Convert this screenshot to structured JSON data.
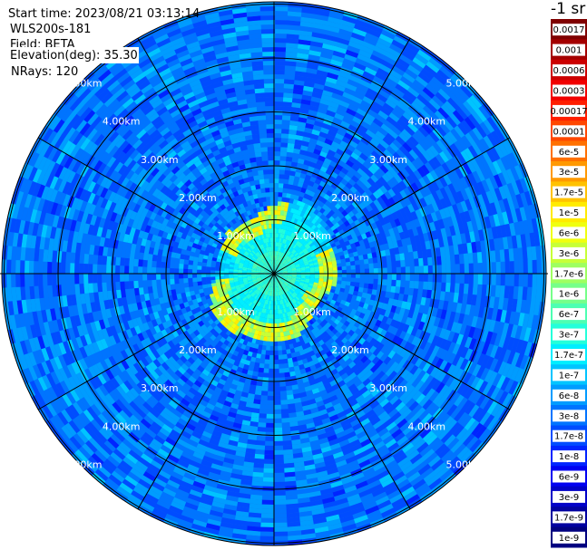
{
  "info": {
    "start_time": "Start time: 2023/08/21 03:13:14",
    "instrument": "WLS200s-181",
    "field": "Field: BETA",
    "elevation": "Elevation(deg): 35.30",
    "nrays": "NRays: 120"
  },
  "plot": {
    "rays": 120,
    "range_rings": [
      {
        "label": "1.00km",
        "km": 1
      },
      {
        "label": "2.00km",
        "km": 2
      },
      {
        "label": "3.00km",
        "km": 3
      },
      {
        "label": "4.00km",
        "km": 4
      },
      {
        "label": "5.00km",
        "km": 5
      }
    ],
    "max_range_km": 5.0,
    "spoke_count": 12,
    "aerosol_ring_km": [
      1.0,
      1.2
    ]
  },
  "colorbar": {
    "unit": "-1 sr",
    "levels": [
      {
        "label": "0.0017",
        "color": "#800000"
      },
      {
        "label": "0.001",
        "color": "#a40000"
      },
      {
        "label": "0.0006",
        "color": "#cc0000"
      },
      {
        "label": "0.0003",
        "color": "#f10000"
      },
      {
        "label": "0.00017",
        "color": "#ff1e00"
      },
      {
        "label": "0.0001",
        "color": "#ff4700"
      },
      {
        "label": "6e-5",
        "color": "#ff7000"
      },
      {
        "label": "3e-5",
        "color": "#ff9900"
      },
      {
        "label": "1.7e-5",
        "color": "#ffc200"
      },
      {
        "label": "1e-5",
        "color": "#ffeb00"
      },
      {
        "label": "6e-6",
        "color": "#f0ff0f"
      },
      {
        "label": "3e-6",
        "color": "#c7ff37"
      },
      {
        "label": "1.7e-6",
        "color": "#9eff60"
      },
      {
        "label": "1e-6",
        "color": "#76ff89"
      },
      {
        "label": "6e-7",
        "color": "#4dffb2"
      },
      {
        "label": "3e-7",
        "color": "#24ffda"
      },
      {
        "label": "1.7e-7",
        "color": "#00eeff"
      },
      {
        "label": "1e-7",
        "color": "#00c4ff"
      },
      {
        "label": "6e-8",
        "color": "#009cff"
      },
      {
        "label": "3e-8",
        "color": "#0074ff"
      },
      {
        "label": "1.7e-8",
        "color": "#004cff"
      },
      {
        "label": "1e-8",
        "color": "#0024ff"
      },
      {
        "label": "6e-9",
        "color": "#0000f1"
      },
      {
        "label": "3e-9",
        "color": "#0000c8"
      },
      {
        "label": "1.7e-9",
        "color": "#0000a0"
      },
      {
        "label": "1e-9",
        "color": "#000080"
      }
    ]
  }
}
